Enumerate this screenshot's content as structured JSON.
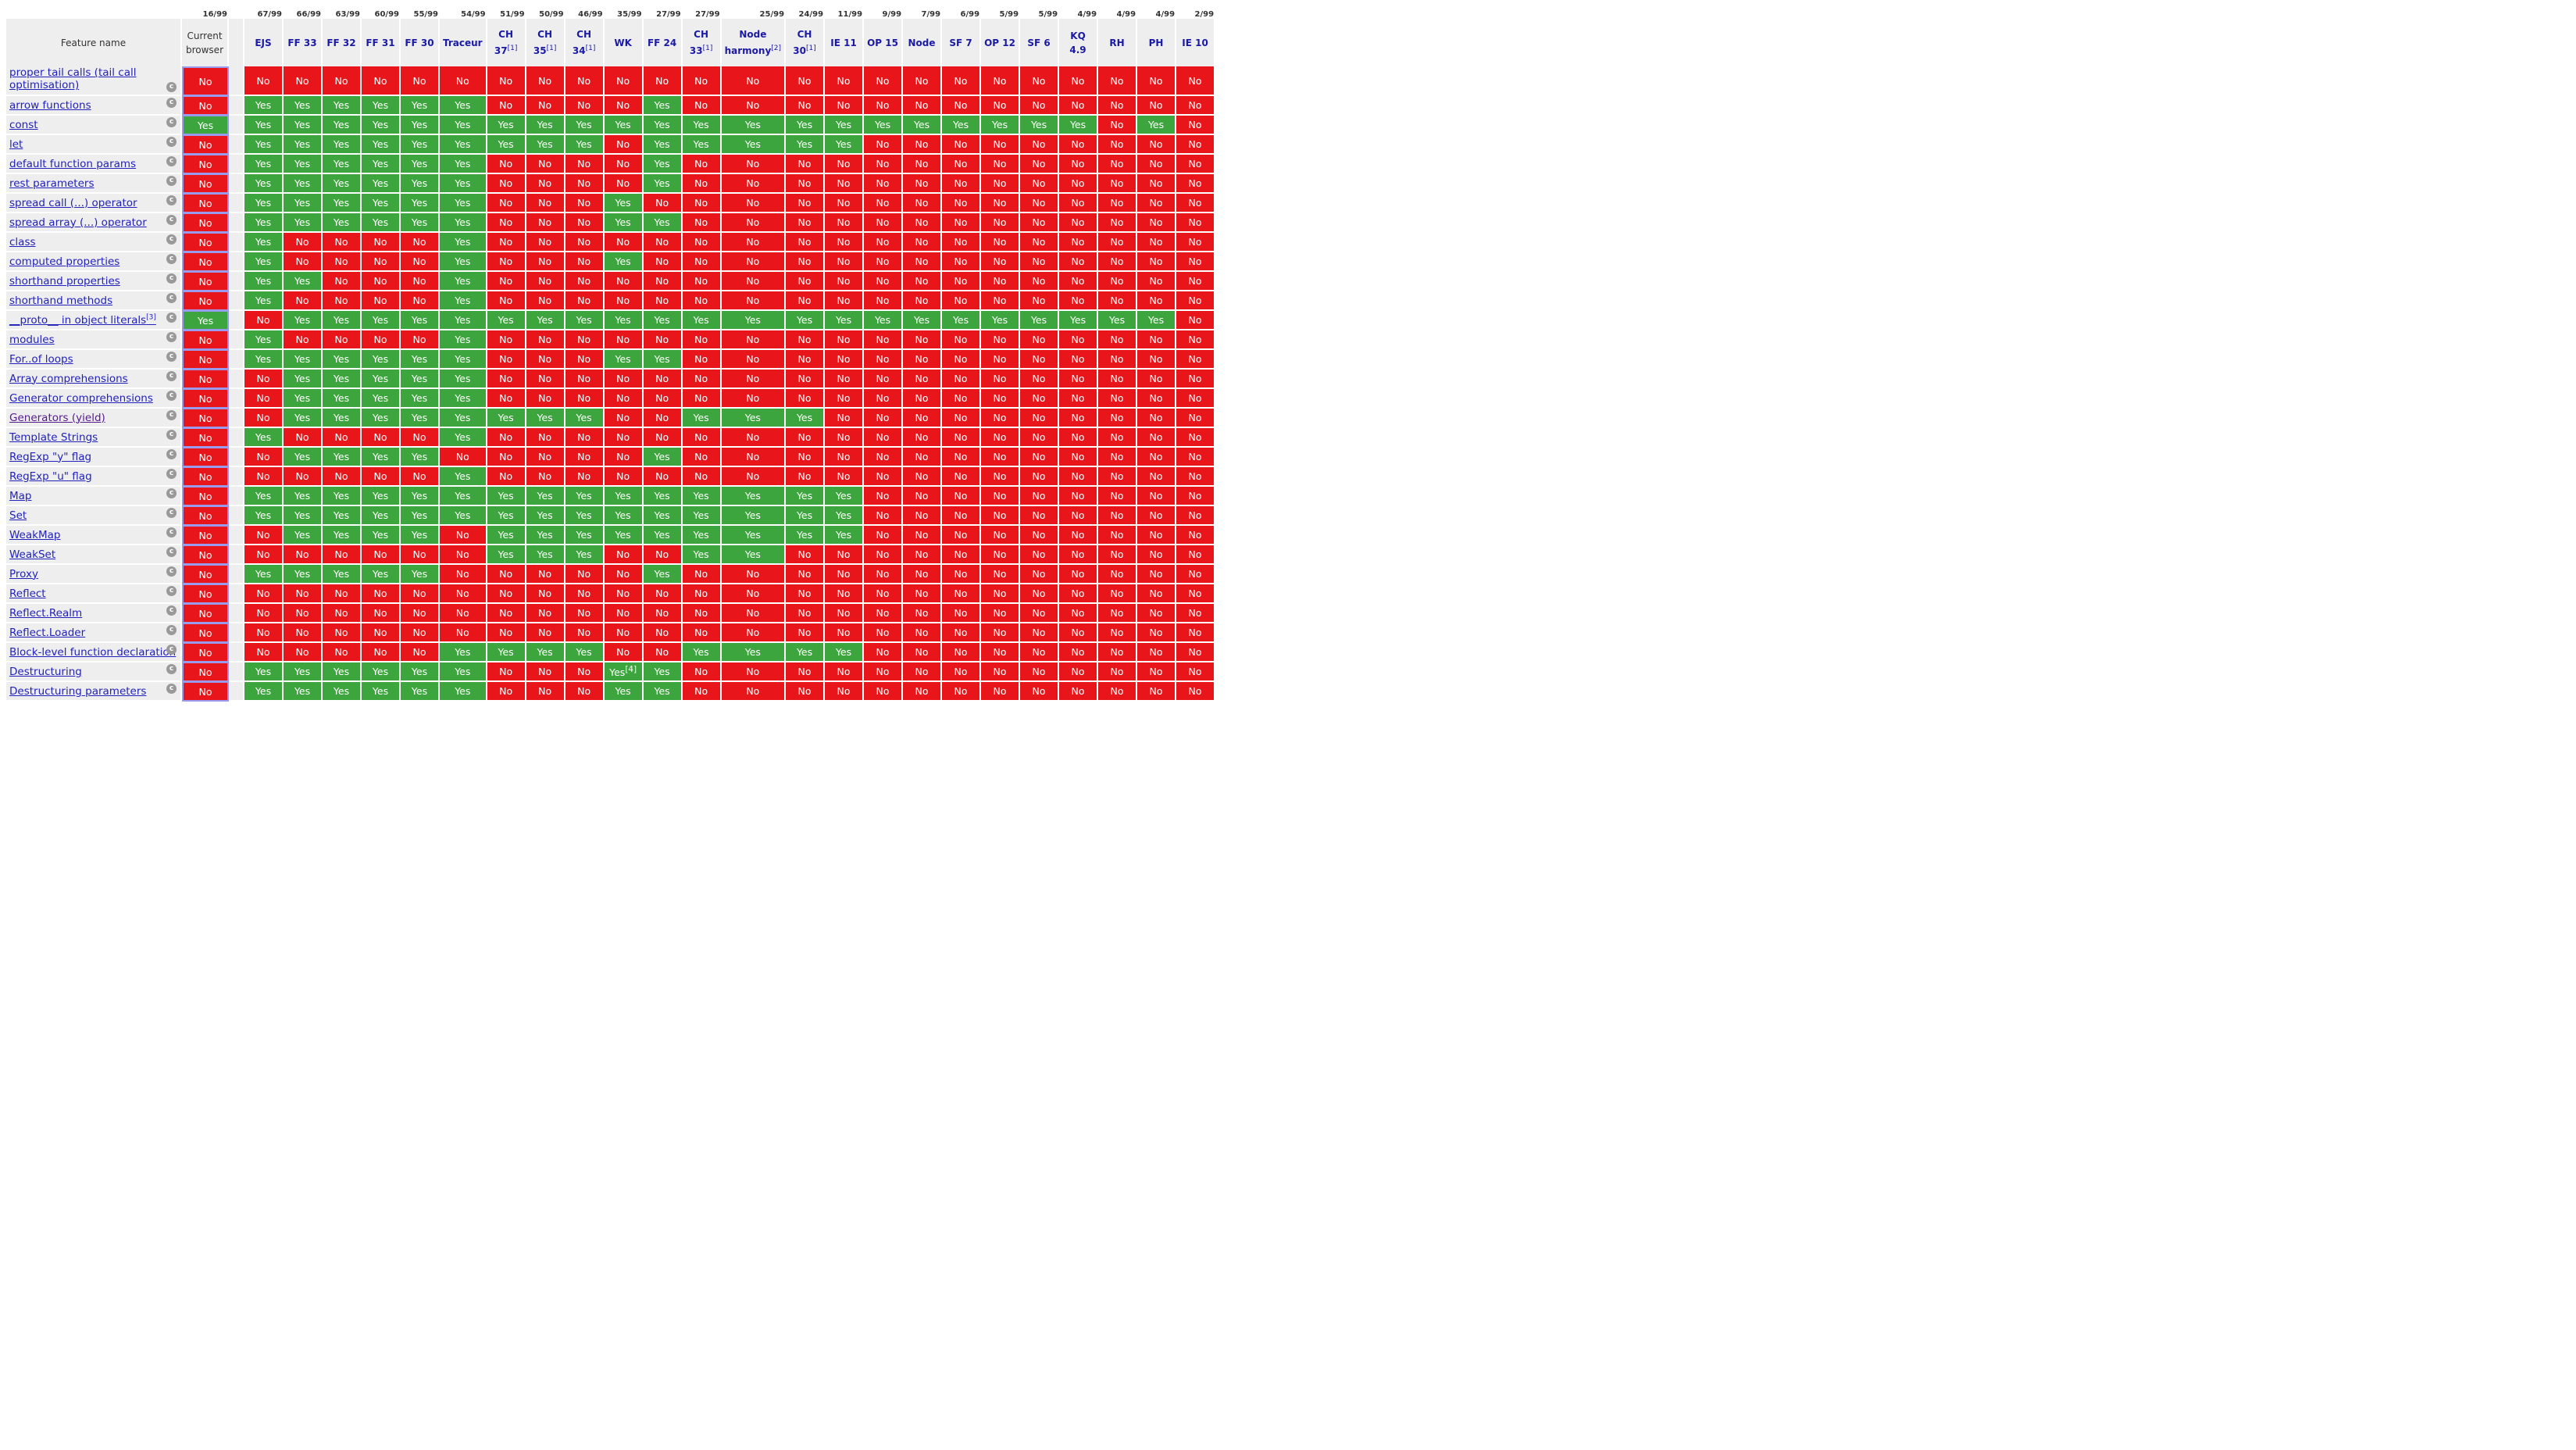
{
  "table": {
    "feature_header": "Feature name",
    "current_header": "Current browser",
    "current_score": "16",
    "total": "/99",
    "browsers": [
      {
        "name": "EJS",
        "score": "67"
      },
      {
        "name": "FF 33",
        "score": "66"
      },
      {
        "name": "FF 32",
        "score": "63"
      },
      {
        "name": "FF 31",
        "score": "60"
      },
      {
        "name": "FF 30",
        "score": "55"
      },
      {
        "name": "Traceur",
        "score": "54"
      },
      {
        "name": "CH 37",
        "note": "[1]",
        "score": "51"
      },
      {
        "name": "CH 35",
        "note": "[1]",
        "score": "50"
      },
      {
        "name": "CH 34",
        "note": "[1]",
        "score": "46"
      },
      {
        "name": "WK",
        "score": "35"
      },
      {
        "name": "FF 24",
        "score": "27"
      },
      {
        "name": "CH 33",
        "note": "[1]",
        "score": "27"
      },
      {
        "name": "Node harmony",
        "note": "[2]",
        "score": "25"
      },
      {
        "name": "CH 30",
        "note": "[1]",
        "score": "24"
      },
      {
        "name": "IE 11",
        "score": "11"
      },
      {
        "name": "OP 15",
        "score": "9"
      },
      {
        "name": "Node",
        "score": "7"
      },
      {
        "name": "SF 7",
        "score": "6"
      },
      {
        "name": "OP 12",
        "score": "5"
      },
      {
        "name": "SF 6",
        "score": "5"
      },
      {
        "name": "KQ 4.9",
        "score": "4"
      },
      {
        "name": "RH",
        "score": "4"
      },
      {
        "name": "PH",
        "score": "4"
      },
      {
        "name": "IE 10",
        "score": "2"
      }
    ],
    "icon_label": "c",
    "features": [
      {
        "name": "proper tail calls (tail call optimisation)",
        "current": "No",
        "values": "NNNNNNNNNNNNNNNNNNNNNNNN"
      },
      {
        "name": "arrow functions",
        "current": "No",
        "values": "YYYYYYNNNNYNNNNNNNNNNNNN"
      },
      {
        "name": "const",
        "current": "Yes",
        "values": "YYYYYYYYYYYYYYYYYYYYYNYN"
      },
      {
        "name": "let",
        "current": "No",
        "values": "YYYYYYYYYNYYYYYNNNNNNNNN"
      },
      {
        "name": "default function params",
        "current": "No",
        "values": "YYYYYYNNNNYNNNNNNNNNNNNN"
      },
      {
        "name": "rest parameters",
        "current": "No",
        "values": "YYYYYYNNNNYNNNNNNNNNNNNN"
      },
      {
        "name": "spread call (...) operator",
        "current": "No",
        "values": "YYYYYYNNNYNNNNNNNNNNNNNN"
      },
      {
        "name": "spread array (...) operator",
        "current": "No",
        "values": "YYYYYYNNNYYNNNNNNNNNNNNN"
      },
      {
        "name": "class",
        "current": "No",
        "values": "YNNNNYNNNNNNNNNNNNNNNNNN"
      },
      {
        "name": "computed properties",
        "current": "No",
        "values": "YNNNNYNNNYNNNNNNNNNNNNNN"
      },
      {
        "name": "shorthand properties",
        "current": "No",
        "values": "YYNNNYNNNNNNNNNNNNNNNNNN"
      },
      {
        "name": "shorthand methods",
        "current": "No",
        "values": "YNNNNYNNNNNNNNNNNNNNNNNN"
      },
      {
        "name": "__proto__ in object literals",
        "note": "[3]",
        "current": "Yes",
        "values": "NYYYYYYYYYYYYYYYYYYYYYYN"
      },
      {
        "name": "modules",
        "current": "No",
        "values": "YNNNNYNNNNNNNNNNNNNNNNNN"
      },
      {
        "name": "For..of loops",
        "current": "No",
        "values": "YYYYYYNNNYYNNNNNNNNNNNNN"
      },
      {
        "name": "Array comprehensions",
        "current": "No",
        "values": "NYYYYYNNNNNNNNNNNNNNNNNN"
      },
      {
        "name": "Generator comprehensions",
        "current": "No",
        "values": "NYYYYYNNNNNNNNNNNNNNNNNN"
      },
      {
        "name": "Generators (yield)",
        "current": "No",
        "visited": true,
        "values": "NYYYYYYYYNNYYYNNNNNNNNNN"
      },
      {
        "name": "Template Strings",
        "current": "No",
        "values": "YNNNNYNNNNNNNNNNNNNNNNNN"
      },
      {
        "name": "RegExp \"y\" flag",
        "current": "No",
        "values": "NYYYYNNNNNYNNNNNNNNNNNNN"
      },
      {
        "name": "RegExp \"u\" flag",
        "current": "No",
        "values": "NNNNNYNNNNNNNNNNNNNNNNNN"
      },
      {
        "name": "Map",
        "current": "No",
        "values": "YYYYYYYYYYYYYYYNNNNNNNNN"
      },
      {
        "name": "Set",
        "current": "No",
        "values": "YYYYYYYYYYYYYYYNNNNNNNNN"
      },
      {
        "name": "WeakMap",
        "current": "No",
        "values": "NYYYYNYYYYYYYYYNNNNNNNNN"
      },
      {
        "name": "WeakSet",
        "current": "No",
        "values": "NNNNNNYYYNNYYNNNNNNNNNNN"
      },
      {
        "name": "Proxy",
        "current": "No",
        "values": "YYYYYNNNNNYNNNNNNNNNNNNN"
      },
      {
        "name": "Reflect",
        "current": "No",
        "values": "NNNNNNNNNNNNNNNNNNNNNNNN"
      },
      {
        "name": "Reflect.Realm",
        "current": "No",
        "values": "NNNNNNNNNNNNNNNNNNNNNNNN"
      },
      {
        "name": "Reflect.Loader",
        "current": "No",
        "values": "NNNNNNNNNNNNNNNNNNNNNNNN"
      },
      {
        "name": "Block-level function declaration",
        "current": "No",
        "values": "NNNNNYYYYNNYYYYNNNNNNNNN"
      },
      {
        "name": "Destructuring",
        "current": "No",
        "values": "YYYYYYNNNYYNNNNNNNNNNNNN",
        "notes": {
          "9": "[4]"
        }
      },
      {
        "name": "Destructuring parameters",
        "current": "No",
        "values": "YYYYYYNNNYYNNNNNNNNNNNNN"
      }
    ],
    "labels": {
      "Y": "Yes",
      "N": "No"
    }
  }
}
